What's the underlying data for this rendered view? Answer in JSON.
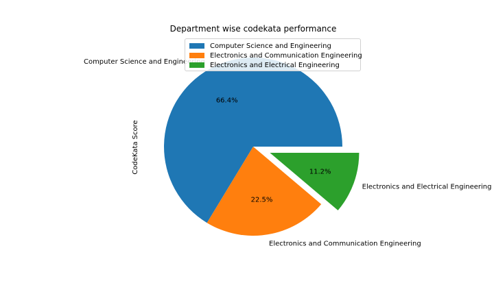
{
  "chart_data": {
    "type": "pie",
    "title": "Department wise codekata performance",
    "ylabel": "CodeKata Score",
    "categories": [
      "Computer Science and Engineering",
      "Electronics and Communication Engineering",
      "Electronics and Electrical Engineering"
    ],
    "values": [
      66.4,
      22.5,
      11.2
    ],
    "pct_labels": [
      "66.4%",
      "22.5%",
      "11.2%"
    ],
    "explode": [
      0,
      0,
      0.2
    ],
    "colors": [
      "#1f77b4",
      "#ff7f0e",
      "#2ca02c"
    ],
    "start_angle_deg": 0,
    "legend": "upper-center"
  }
}
